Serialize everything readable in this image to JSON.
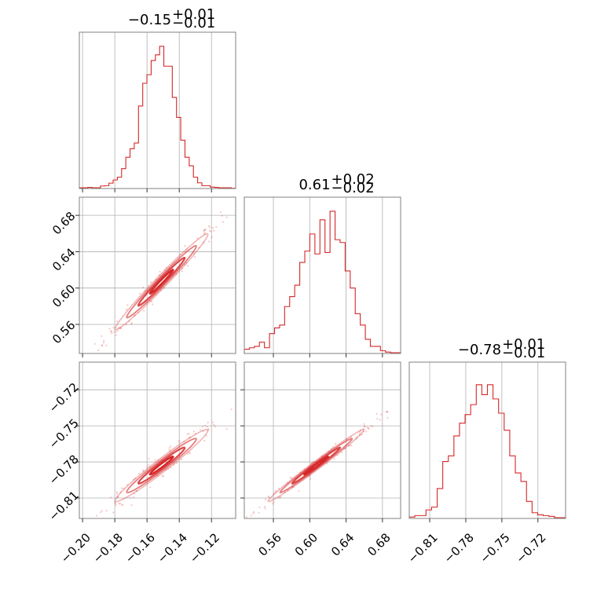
{
  "chart_data": {
    "type": "scatter",
    "subtype": "corner-plot",
    "color": "#d62728",
    "grid": true,
    "titles": [
      {
        "value": "−0.15",
        "plus": "+0.01",
        "minus": "−0.01"
      },
      {
        "value": "0.61",
        "plus": "+0.02",
        "minus": "−0.02"
      },
      {
        "value": "−0.78",
        "plus": "+0.01",
        "minus": "−0.01"
      }
    ],
    "params": [
      {
        "range": [
          -0.202,
          -0.105
        ],
        "ticks": [
          -0.2,
          -0.18,
          -0.16,
          -0.14,
          -0.12
        ],
        "tick_labels": [
          "−0.20",
          "−0.18",
          "−0.16",
          "−0.14",
          "−0.12"
        ]
      },
      {
        "range": [
          0.528,
          0.7
        ],
        "ticks": [
          0.56,
          0.6,
          0.64,
          0.68
        ],
        "tick_labels": [
          "0.56",
          "0.60",
          "0.64",
          "0.68"
        ]
      },
      {
        "range": [
          -0.827,
          -0.697
        ],
        "ticks": [
          -0.81,
          -0.78,
          -0.75,
          -0.72
        ],
        "tick_labels": [
          "−0.81",
          "−0.78",
          "−0.75",
          "−0.72"
        ]
      }
    ],
    "histograms": [
      [
        0.005,
        0.005,
        0.008,
        0.005,
        0.005,
        0.018,
        0.02,
        0.038,
        0.06,
        0.08,
        0.14,
        0.22,
        0.28,
        0.32,
        0.58,
        0.74,
        0.8,
        0.9,
        0.94,
        1.0,
        0.86,
        0.86,
        0.64,
        0.5,
        0.34,
        0.22,
        0.16,
        0.08,
        0.04,
        0.02,
        0.02,
        0.01,
        0.008,
        0.005,
        0.005,
        0.005,
        0.002
      ],
      [
        0.03,
        0.04,
        0.05,
        0.08,
        0.04,
        0.14,
        0.18,
        0.2,
        0.33,
        0.4,
        0.48,
        0.64,
        0.72,
        0.84,
        0.7,
        0.94,
        0.71,
        1.0,
        0.8,
        0.78,
        0.58,
        0.46,
        0.28,
        0.2,
        0.1,
        0.05,
        0.05,
        0.02,
        0.01,
        0.005,
        0.005
      ],
      [
        0.01,
        0.02,
        0.02,
        0.06,
        0.08,
        0.21,
        0.4,
        0.44,
        0.58,
        0.67,
        0.73,
        0.8,
        0.94,
        0.87,
        0.94,
        0.84,
        0.74,
        0.62,
        0.44,
        0.32,
        0.26,
        0.12,
        0.04,
        0.025,
        0.02,
        0.015,
        0.005,
        0.005
      ]
    ],
    "correlations": {
      "1,0": 0.985,
      "2,0": 0.975,
      "2,1": 0.99
    },
    "means": [
      -0.151,
      0.607,
      -0.783
    ],
    "sigmas": [
      0.012,
      0.022,
      0.0125
    ]
  }
}
